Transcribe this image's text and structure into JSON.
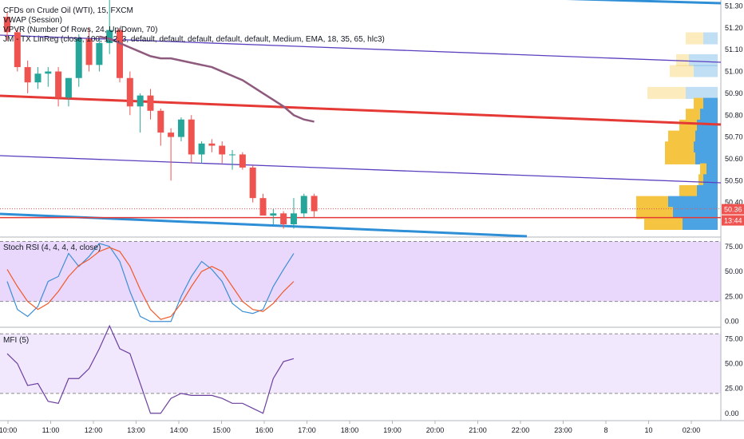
{
  "header": {
    "symbol_line": "CFDs on Crude Oil (WTI), 15, FXCM",
    "indicators": [
      "VWAP (Session)",
      "VPVR (Number Of Rows, 24, Up/Down, 70)",
      "JM - TX LinReg (close, 100, 1, 2, 3, default, default, default, default, default, Medium, EMA, 18, 35, 65, hlc3)"
    ]
  },
  "rsi_title": "Stoch RSI (4, 4, 4, 4, close)",
  "mfi_title": "MFI (5)",
  "price_axis": [
    "51.30",
    "51.20",
    "51.10",
    "51.00",
    "50.90",
    "50.80",
    "50.70",
    "50.60",
    "50.50",
    "50.40"
  ],
  "rsi_axis": [
    "75.00",
    "50.00",
    "25.00",
    "0.00"
  ],
  "mfi_axis": [
    "75.00",
    "50.00",
    "25.00",
    "0.00"
  ],
  "time_axis": [
    "10:00",
    "11:00",
    "12:00",
    "13:00",
    "14:00",
    "15:00",
    "16:00",
    "17:00",
    "18:00",
    "19:00",
    "20:00",
    "21:00",
    "22:00",
    "23:00",
    "8",
    "10",
    "02:00"
  ],
  "last_price": "50.36",
  "countdown": "13:44",
  "colors": {
    "bull": "#26a69a",
    "bear": "#ef5350",
    "vwap": "#8e5a7e",
    "reg_purple": "#5b3fbf",
    "reg_red": "#e53935",
    "reg_blue": "#2e8fd6",
    "stoch_k": "#3d8fd6",
    "stoch_d": "#f15a2a",
    "mfi": "#6b3fa0",
    "band": "#e9d8fb",
    "vp_up": "#4ba3e3",
    "vp_down": "#f5c542"
  },
  "chart_data": [
    {
      "type": "candlestick",
      "title": "CFDs on Crude Oil (WTI), 15, FXCM",
      "x": [
        "10:00",
        "10:15",
        "10:30",
        "10:45",
        "11:00",
        "11:15",
        "11:30",
        "11:45",
        "12:00",
        "12:15",
        "12:30",
        "12:45",
        "13:00",
        "13:15",
        "13:30",
        "13:45",
        "14:00",
        "14:15",
        "14:30",
        "14:45",
        "15:00",
        "15:15",
        "15:30",
        "15:45",
        "16:00",
        "16:15",
        "16:30",
        "16:45",
        "17:00",
        "17:15",
        "17:30"
      ],
      "ohlc": [
        [
          51.25,
          51.27,
          51.14,
          51.18
        ],
        [
          51.18,
          51.2,
          51.0,
          51.02
        ],
        [
          51.02,
          51.05,
          50.9,
          50.95
        ],
        [
          50.95,
          51.02,
          50.92,
          50.99
        ],
        [
          50.99,
          51.02,
          50.93,
          51.0
        ],
        [
          51.0,
          51.02,
          50.84,
          50.88
        ],
        [
          50.88,
          50.97,
          50.84,
          50.97
        ],
        [
          50.97,
          51.17,
          50.93,
          51.15
        ],
        [
          51.15,
          51.2,
          51.0,
          51.03
        ],
        [
          51.03,
          51.15,
          51.0,
          51.13
        ],
        [
          51.13,
          51.35,
          51.08,
          51.19
        ],
        [
          51.19,
          51.2,
          50.95,
          50.97
        ],
        [
          50.97,
          51.0,
          50.8,
          50.84
        ],
        [
          50.84,
          50.9,
          50.72,
          50.89
        ],
        [
          50.89,
          50.92,
          50.78,
          50.82
        ],
        [
          50.82,
          50.83,
          50.66,
          50.72
        ],
        [
          50.72,
          50.74,
          50.5,
          50.7
        ],
        [
          50.7,
          50.79,
          50.68,
          50.78
        ],
        [
          50.78,
          50.8,
          50.58,
          50.62
        ],
        [
          50.62,
          50.68,
          50.58,
          50.67
        ],
        [
          50.67,
          50.69,
          50.63,
          50.66
        ],
        [
          50.66,
          50.68,
          50.58,
          50.62
        ],
        [
          50.62,
          50.64,
          50.55,
          50.62
        ],
        [
          50.62,
          50.63,
          50.55,
          50.56
        ],
        [
          50.56,
          50.57,
          50.4,
          50.42
        ],
        [
          50.42,
          50.44,
          50.34,
          50.34
        ],
        [
          50.34,
          50.37,
          50.3,
          50.35
        ],
        [
          50.35,
          50.36,
          50.28,
          50.3
        ],
        [
          50.3,
          50.42,
          50.28,
          50.35
        ],
        [
          50.35,
          50.44,
          50.33,
          50.43
        ],
        [
          50.43,
          50.44,
          50.33,
          50.36
        ]
      ],
      "vwap": [
        51.16,
        51.15,
        51.13,
        51.11,
        51.09,
        51.07,
        51.06,
        51.06,
        51.05,
        51.04,
        51.03,
        51.02,
        51.0,
        50.98,
        50.96,
        50.93,
        50.9,
        50.87,
        50.84,
        50.8,
        50.78,
        50.77
      ],
      "ylim": [
        50.28,
        51.33
      ],
      "volume_profile": [
        {
          "price": 51.15,
          "up": 18,
          "down": 22
        },
        {
          "price": 51.05,
          "up": 36,
          "down": 16
        },
        {
          "price": 51.0,
          "up": 30,
          "down": 30
        },
        {
          "price": 50.9,
          "up": 40,
          "down": 48
        },
        {
          "price": 50.85,
          "up": 18,
          "down": 12
        },
        {
          "price": 50.8,
          "up": 22,
          "down": 18
        },
        {
          "price": 50.75,
          "up": 26,
          "down": 22
        },
        {
          "price": 50.7,
          "up": 28,
          "down": 34
        },
        {
          "price": 50.65,
          "up": 30,
          "down": 36
        },
        {
          "price": 50.6,
          "up": 28,
          "down": 38
        },
        {
          "price": 50.55,
          "up": 14,
          "down": 8
        },
        {
          "price": 50.5,
          "up": 18,
          "down": 6
        },
        {
          "price": 50.45,
          "up": 26,
          "down": 22
        },
        {
          "price": 50.4,
          "up": 62,
          "down": 40
        },
        {
          "price": 50.35,
          "up": 56,
          "down": 46
        },
        {
          "price": 50.3,
          "up": 44,
          "down": 48
        }
      ]
    },
    {
      "type": "line",
      "title": "Stoch RSI (4, 4, 4, 4, close)",
      "ylim": [
        -5,
        82
      ],
      "series": [
        {
          "name": "K",
          "values": [
            40,
            12,
            5,
            15,
            40,
            45,
            68,
            55,
            65,
            78,
            75,
            60,
            30,
            5,
            0,
            0,
            0,
            25,
            45,
            60,
            52,
            40,
            18,
            10,
            8,
            12,
            35,
            52,
            68
          ]
        },
        {
          "name": "D",
          "values": [
            52,
            35,
            20,
            12,
            18,
            30,
            45,
            56,
            62,
            70,
            74,
            70,
            55,
            32,
            12,
            2,
            5,
            18,
            35,
            50,
            55,
            50,
            35,
            20,
            12,
            10,
            18,
            30,
            40
          ]
        }
      ]
    },
    {
      "type": "line",
      "title": "MFI (5)",
      "ylim": [
        -5,
        85
      ],
      "series": [
        {
          "name": "MFI",
          "values": [
            60,
            50,
            28,
            30,
            12,
            10,
            35,
            35,
            45,
            65,
            88,
            65,
            60,
            30,
            0,
            0,
            15,
            20,
            18,
            18,
            18,
            15,
            10,
            10,
            5,
            0,
            35,
            52,
            55
          ]
        }
      ]
    }
  ]
}
